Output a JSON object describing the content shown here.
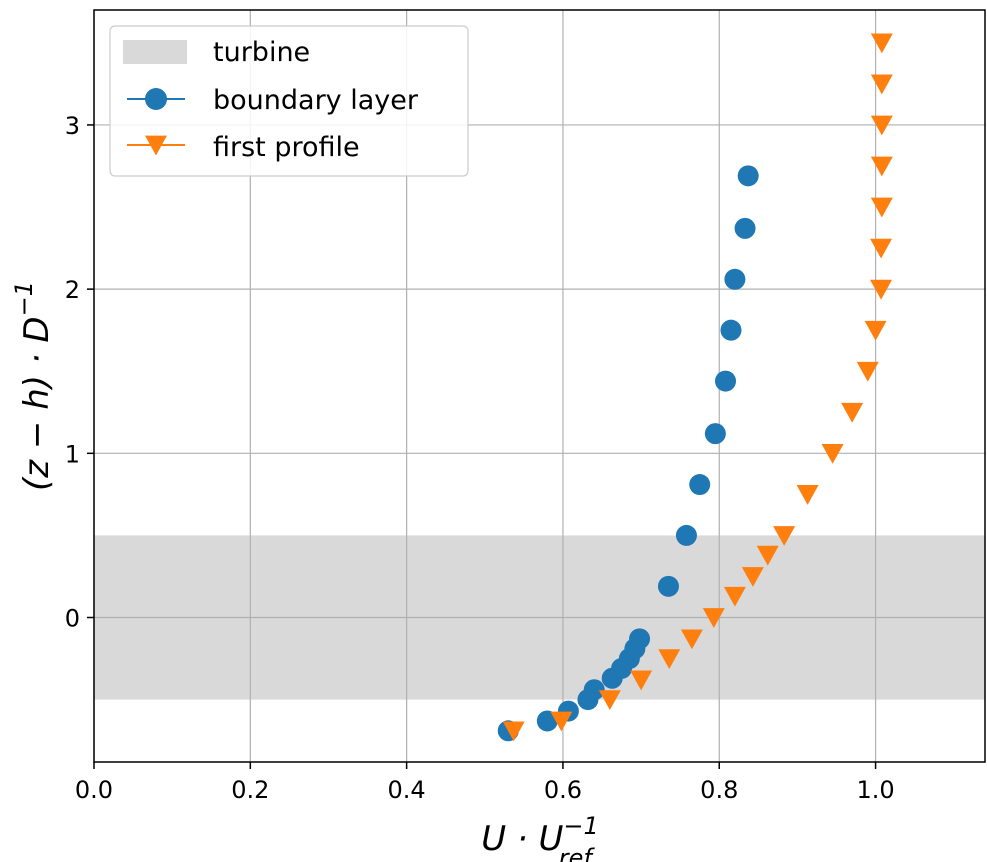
{
  "chart_data": {
    "type": "scatter",
    "xlabel": {
      "base": "U · U",
      "sup": "−1",
      "sub": "ref"
    },
    "ylabel": {
      "base": "(z − h) · D",
      "sup": "−1"
    },
    "xlim": [
      0.0,
      1.14
    ],
    "ylim": [
      -0.88,
      3.7
    ],
    "x_ticks": [
      0.0,
      0.2,
      0.4,
      0.6,
      0.8,
      1.0
    ],
    "x_tick_labels": [
      "0.0",
      "0.2",
      "0.4",
      "0.6",
      "0.8",
      "1.0"
    ],
    "y_ticks": [
      0,
      1,
      2,
      3
    ],
    "y_tick_labels": [
      "0",
      "1",
      "2",
      "3"
    ],
    "grid": true,
    "legend": "top-left",
    "turbine_band": {
      "label": "turbine",
      "y0": -0.5,
      "y1": 0.5,
      "color": "#d9d9d9"
    },
    "series": [
      {
        "name": "boundary layer",
        "marker": "circle",
        "color": "#1f77b4",
        "points": [
          [
            0.53,
            -0.69
          ],
          [
            0.58,
            -0.63
          ],
          [
            0.607,
            -0.57
          ],
          [
            0.632,
            -0.5
          ],
          [
            0.64,
            -0.44
          ],
          [
            0.663,
            -0.37
          ],
          [
            0.675,
            -0.31
          ],
          [
            0.685,
            -0.25
          ],
          [
            0.692,
            -0.19
          ],
          [
            0.698,
            -0.13
          ],
          [
            0.735,
            0.19
          ],
          [
            0.758,
            0.5
          ],
          [
            0.775,
            0.81
          ],
          [
            0.795,
            1.12
          ],
          [
            0.808,
            1.44
          ],
          [
            0.815,
            1.75
          ],
          [
            0.82,
            2.06
          ],
          [
            0.833,
            2.37
          ],
          [
            0.837,
            2.69
          ]
        ]
      },
      {
        "name": "first profile",
        "marker": "triangle-down",
        "color": "#ff7f0e",
        "points": [
          [
            0.537,
            -0.69
          ],
          [
            0.598,
            -0.63
          ],
          [
            0.66,
            -0.5
          ],
          [
            0.7,
            -0.38
          ],
          [
            0.736,
            -0.25
          ],
          [
            0.765,
            -0.13
          ],
          [
            0.793,
            0.0
          ],
          [
            0.82,
            0.13
          ],
          [
            0.843,
            0.25
          ],
          [
            0.862,
            0.38
          ],
          [
            0.883,
            0.5
          ],
          [
            0.913,
            0.75
          ],
          [
            0.945,
            1.0
          ],
          [
            0.97,
            1.25
          ],
          [
            0.99,
            1.5
          ],
          [
            1.0,
            1.75
          ],
          [
            1.007,
            2.0
          ],
          [
            1.007,
            2.25
          ],
          [
            1.008,
            2.5
          ],
          [
            1.008,
            2.75
          ],
          [
            1.008,
            3.0
          ],
          [
            1.008,
            3.25
          ],
          [
            1.008,
            3.5
          ]
        ]
      }
    ]
  }
}
